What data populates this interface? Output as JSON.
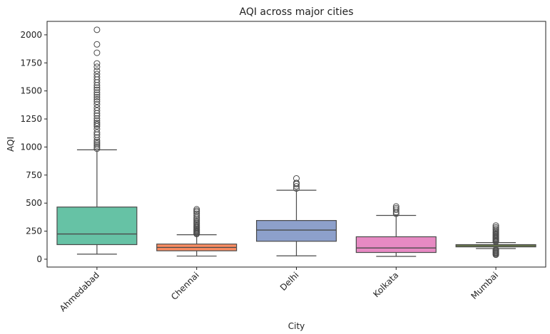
{
  "chart_data": {
    "type": "box",
    "title": "AQI across major cities",
    "xlabel": "City",
    "ylabel": "AQI",
    "ylim": [
      -70,
      2120
    ],
    "yticks": [
      0,
      250,
      500,
      750,
      1000,
      1250,
      1500,
      1750,
      2000
    ],
    "grid": false,
    "legend": "none",
    "categories": [
      "Ahmedabad",
      "Chennai",
      "Delhi",
      "Kolkata",
      "Mumbai"
    ],
    "boxes": [
      {
        "category": "Ahmedabad",
        "color": "#66c2a5",
        "whisker_low": 45,
        "q1": 130,
        "median": 225,
        "q3": 465,
        "whisker_high": 975,
        "outliers": [
          985,
          1000,
          1015,
          1030,
          1045,
          1060,
          1085,
          1110,
          1130,
          1160,
          1185,
          1200,
          1215,
          1235,
          1255,
          1280,
          1300,
          1325,
          1350,
          1380,
          1405,
          1425,
          1445,
          1465,
          1485,
          1510,
          1530,
          1550,
          1575,
          1600,
          1625,
          1650,
          1680,
          1715,
          1745,
          1840,
          1915,
          2045
        ]
      },
      {
        "category": "Chennai",
        "color": "#fc8d62",
        "whisker_low": 28,
        "q1": 75,
        "median": 105,
        "q3": 135,
        "whisker_high": 218,
        "outliers": [
          225,
          232,
          240,
          248,
          256,
          264,
          272,
          282,
          292,
          302,
          312,
          322,
          332,
          345,
          358,
          372,
          388,
          405,
          420,
          432,
          445
        ]
      },
      {
        "category": "Delhi",
        "color": "#8da0cb",
        "whisker_low": 30,
        "q1": 160,
        "median": 260,
        "q3": 345,
        "whisker_high": 615,
        "outliers": [
          630,
          650,
          670,
          680,
          720
        ]
      },
      {
        "category": "Kolkata",
        "color": "#e78ac3",
        "whisker_low": 25,
        "q1": 60,
        "median": 100,
        "q3": 200,
        "whisker_high": 390,
        "outliers": [
          405,
          420,
          440,
          455,
          470
        ]
      },
      {
        "category": "Mumbai",
        "color": "#a6d854",
        "whisker_low": 95,
        "q1": 110,
        "median": 120,
        "q3": 130,
        "whisker_high": 148,
        "outliers": [
          40,
          48,
          55,
          62,
          70,
          78,
          86,
          155,
          163,
          171,
          179,
          187,
          195,
          203,
          211,
          219,
          228,
          238,
          248,
          260,
          272,
          285,
          300
        ]
      }
    ]
  }
}
